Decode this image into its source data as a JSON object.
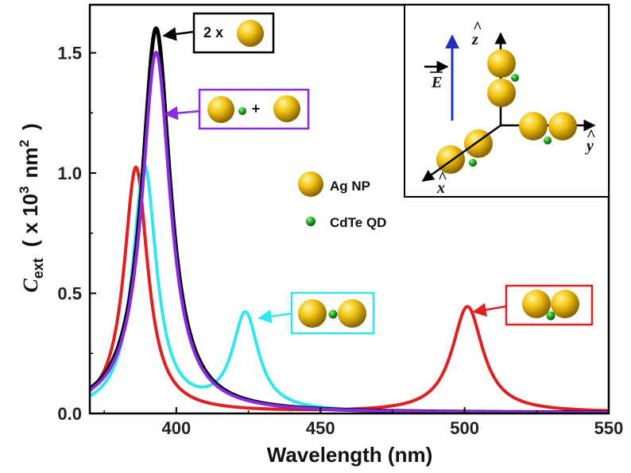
{
  "chart_data": {
    "type": "line",
    "title": "",
    "xlabel": "Wavelength (nm)",
    "ylabel": {
      "symbol": "C",
      "subscript": "ext",
      "open_paren": "(",
      "times": "x 10",
      "power": "3",
      "unit": "nm",
      "unit_power": "2",
      "close_paren": ")"
    },
    "xlim": [
      370,
      550
    ],
    "ylim": [
      0,
      1.7
    ],
    "x_ticks": [
      400,
      450,
      500,
      550
    ],
    "y_ticks": [
      0.0,
      0.5,
      1.0,
      1.5
    ],
    "x_tick_labels": [
      "400",
      "450",
      "500",
      "550"
    ],
    "y_tick_labels": [
      "0.0",
      "0.5",
      "1.0",
      "1.5"
    ],
    "series": [
      {
        "name": "2 x Ag NP",
        "color": "#000000",
        "peaks": [
          {
            "center": 393,
            "height": 1.6,
            "width": 6
          }
        ],
        "baseline": 0.002
      },
      {
        "name": "Ag NP + CdTe QD + Ag NP (separated)",
        "color": "#8a2be2",
        "peaks": [
          {
            "center": 393,
            "height": 1.5,
            "width": 6
          }
        ],
        "baseline": 0.002
      },
      {
        "name": "Ag NP - CdTe QD - Ag NP (coupled, y)",
        "color": "#33e5f0",
        "peaks": [
          {
            "center": 389,
            "height": 1.02,
            "width": 5
          },
          {
            "center": 424,
            "height": 0.4,
            "width": 5.5
          }
        ],
        "baseline": 0.003
      },
      {
        "name": "Ag NP - Ag NP with CdTe QD below (x)",
        "color": "#e02020",
        "peaks": [
          {
            "center": 386,
            "height": 1.02,
            "width": 5
          },
          {
            "center": 501,
            "height": 0.44,
            "width": 6.5
          }
        ],
        "baseline": 0.003
      }
    ],
    "annotations": {
      "dimer_label": "2 x",
      "plus_label": "+"
    },
    "legend": {
      "ag_np": "Ag NP",
      "cdte_qd": "CdTe QD"
    },
    "inset": {
      "field_label": "E",
      "x_axis": "x",
      "y_axis": "y",
      "z_axis": "z",
      "hat": "^"
    }
  },
  "colors": {
    "gold_light": "#fff3a0",
    "gold_mid": "#f2c311",
    "gold_dark": "#8a6400",
    "qd_light": "#7cff7c",
    "qd_dark": "#0a5a0a",
    "field_arrow": "#1f2fbf"
  }
}
